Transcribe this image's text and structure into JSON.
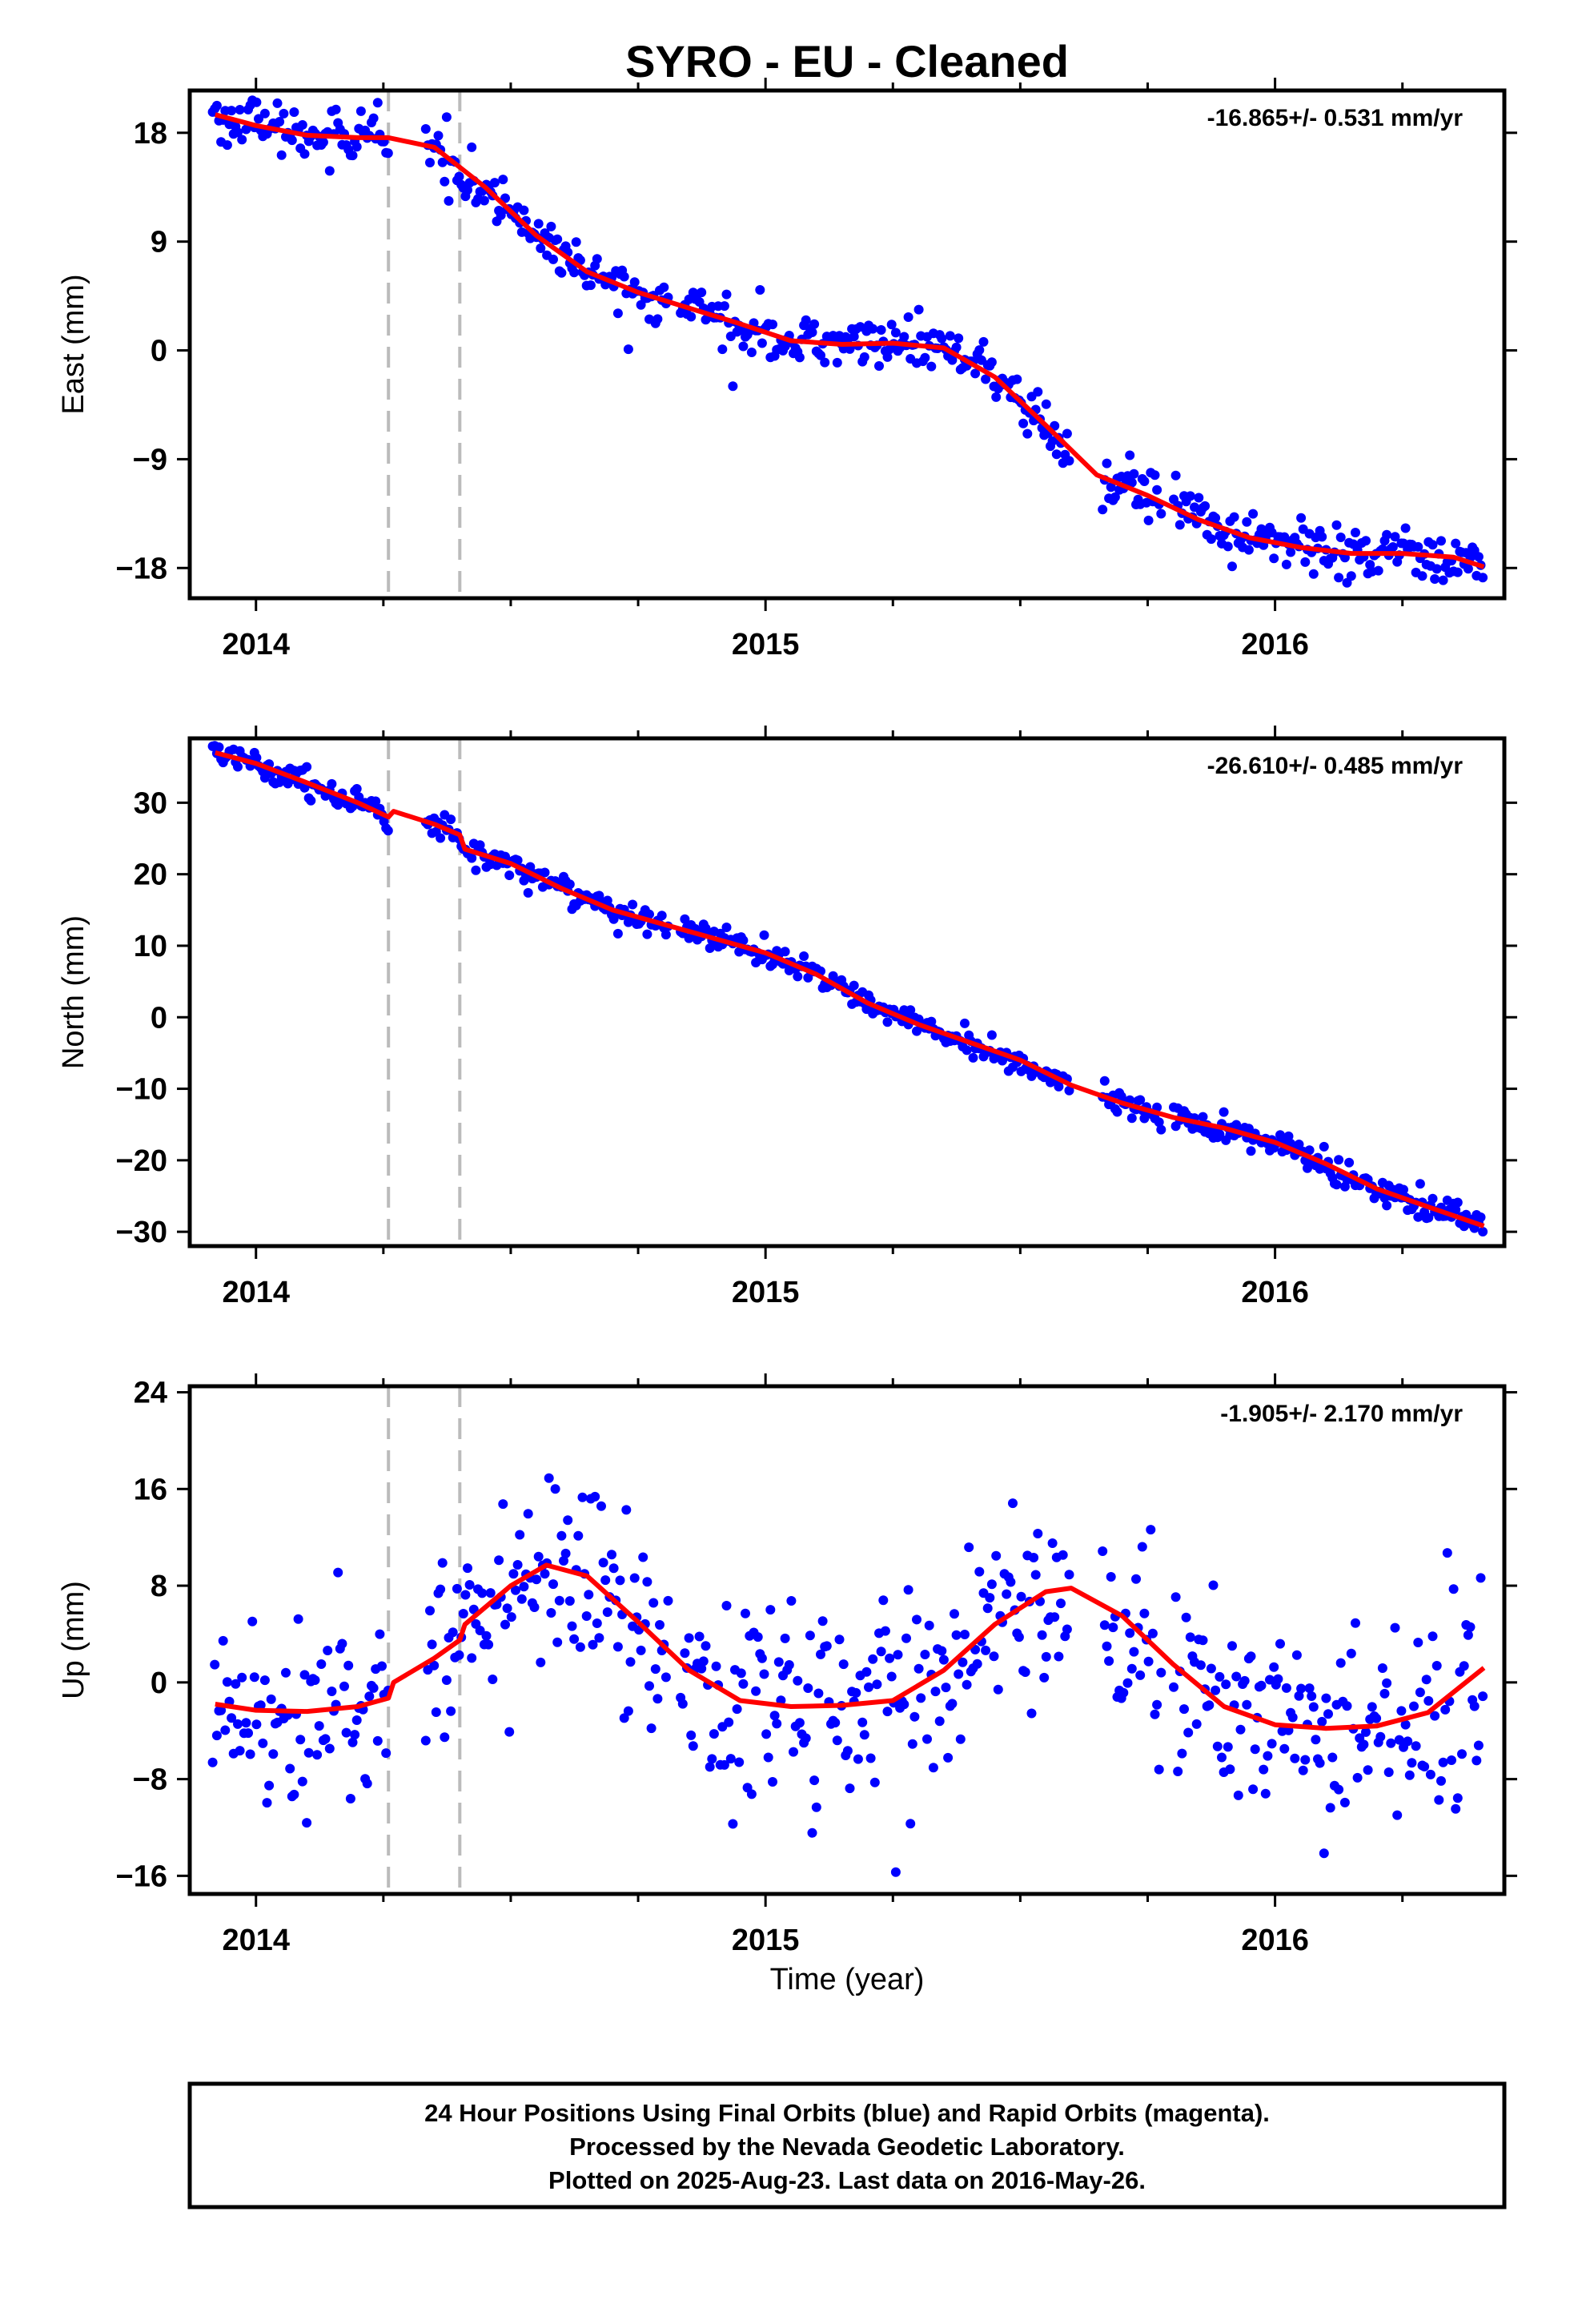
{
  "title": "SYRO  - EU - Cleaned",
  "xlabel": "Time (year)",
  "colors": {
    "final_orbits": "#0000ff",
    "model_fit": "#ff0000",
    "break_lines": "#bbbbbb"
  },
  "footer": {
    "line1": "24 Hour Positions Using Final Orbits (blue) and Rapid Orbits (magenta).",
    "line2": "Processed by the Nevada Geodetic Laboratory.",
    "line3": "Plotted on 2025-Aug-23. Last data on 2016-May-26."
  },
  "chart_data": [
    {
      "type": "scatter",
      "component": "east",
      "ylabel": "East (mm)",
      "rate_label": "-16.865+/- 0.531 mm/yr",
      "xlim": [
        2013.87,
        2016.45
      ],
      "ylim": [
        -20.5,
        21.5
      ],
      "xticks": [
        2014,
        2015,
        2016
      ],
      "yticks": [
        -18,
        -9,
        0,
        9,
        18
      ],
      "ytick_labels": [
        "−18",
        "−9",
        "0",
        "9",
        "18"
      ],
      "break_lines": [
        2014.26,
        2014.4
      ],
      "noise": 1.0,
      "fit": {
        "x": [
          2013.92,
          2014.0,
          2014.1,
          2014.2,
          2014.26,
          2014.35,
          2014.45,
          2014.55,
          2014.65,
          2014.75,
          2014.85,
          2014.95,
          2015.05,
          2015.15,
          2015.25,
          2015.35,
          2015.45,
          2015.55,
          2015.65,
          2015.75,
          2015.85,
          2015.95,
          2016.05,
          2016.15,
          2016.25,
          2016.35,
          2016.41
        ],
        "y": [
          19.5,
          18.6,
          17.8,
          17.6,
          17.6,
          16.8,
          13.5,
          9.5,
          6.5,
          4.8,
          3.5,
          2.2,
          0.8,
          0.5,
          0.6,
          0.2,
          -2.2,
          -6.2,
          -10.3,
          -12.0,
          -14.0,
          -15.5,
          -16.3,
          -16.8,
          -16.8,
          -17.1,
          -17.9
        ]
      }
    },
    {
      "type": "scatter",
      "component": "north",
      "ylabel": "North (mm)",
      "rate_label": "-26.610+/- 0.485 mm/yr",
      "xlim": [
        2013.87,
        2016.45
      ],
      "ylim": [
        -32,
        39
      ],
      "xticks": [
        2014,
        2015,
        2016
      ],
      "yticks": [
        -30,
        -20,
        -10,
        0,
        10,
        20,
        30
      ],
      "ytick_labels": [
        "−30",
        "−20",
        "−10",
        "0",
        "10",
        "20",
        "30"
      ],
      "break_lines": [
        2014.26,
        2014.4
      ],
      "noise": 0.9,
      "fit": {
        "x": [
          2013.92,
          2014.0,
          2014.1,
          2014.2,
          2014.26,
          2014.27,
          2014.35,
          2014.4,
          2014.41,
          2014.5,
          2014.6,
          2014.7,
          2014.8,
          2014.9,
          2015.0,
          2015.1,
          2015.2,
          2015.3,
          2015.4,
          2015.5,
          2015.6,
          2015.7,
          2015.8,
          2015.9,
          2016.0,
          2016.1,
          2016.2,
          2016.3,
          2016.41
        ],
        "y": [
          37.0,
          35.5,
          32.8,
          30.0,
          28.0,
          28.8,
          27.0,
          25.5,
          23.5,
          21.5,
          18.0,
          15.0,
          13.0,
          11.0,
          9.0,
          6.0,
          2.0,
          -1.0,
          -3.5,
          -6.0,
          -9.5,
          -12.0,
          -14.0,
          -15.5,
          -17.5,
          -20.5,
          -24.0,
          -26.5,
          -29.2
        ]
      }
    },
    {
      "type": "scatter",
      "component": "up",
      "ylabel": "Up (mm)",
      "rate_label": "-1.905+/- 2.170 mm/yr",
      "xlim": [
        2013.87,
        2016.45
      ],
      "ylim": [
        -17.5,
        24.5
      ],
      "xticks": [
        2014,
        2015,
        2016
      ],
      "yticks": [
        -16,
        -8,
        0,
        8,
        16,
        24
      ],
      "ytick_labels": [
        "−16",
        "−8",
        "0",
        "8",
        "16",
        "24"
      ],
      "break_lines": [
        2014.26,
        2014.4
      ],
      "noise": 4.2,
      "fit": {
        "x": [
          2013.92,
          2014.0,
          2014.1,
          2014.2,
          2014.26,
          2014.27,
          2014.35,
          2014.4,
          2014.41,
          2014.5,
          2014.57,
          2014.65,
          2014.75,
          2014.85,
          2014.95,
          2015.05,
          2015.15,
          2015.25,
          2015.35,
          2015.45,
          2015.55,
          2015.6,
          2015.7,
          2015.8,
          2015.9,
          2016.0,
          2016.1,
          2016.2,
          2016.3,
          2016.41
        ],
        "y": [
          -1.8,
          -2.3,
          -2.4,
          -2.0,
          -1.3,
          0.0,
          2.0,
          3.5,
          4.8,
          8.0,
          9.7,
          8.8,
          5.0,
          1.0,
          -1.5,
          -2.0,
          -1.9,
          -1.5,
          1.0,
          4.8,
          7.5,
          7.8,
          5.5,
          1.5,
          -2.0,
          -3.5,
          -3.8,
          -3.6,
          -2.5,
          1.2
        ]
      }
    }
  ]
}
